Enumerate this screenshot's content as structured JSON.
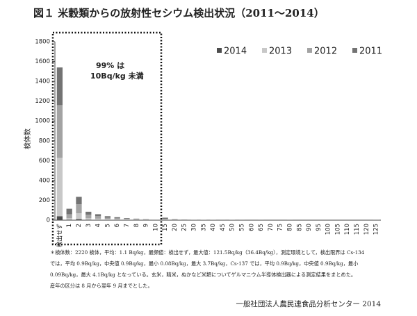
{
  "chart_data": {
    "type": "stacked_bar",
    "title": "図１ 米穀類からの放射性セシウム検出状況（2011〜2014）",
    "ylabel": "検体数",
    "annotation": [
      "99% は",
      "10Bq/kg 未満"
    ],
    "notes": [
      "＊検体数：2220 検体，平均：1.1 Bq/kg，最頻値：検出せず，最大値：121.5Bq/kg（36.4Bq/kg），測定環境として，検出限界は Cs-134",
      "では，平均 0.9Bq/kg，中央値 0.9Bq/kg，最小 0.08Bq/kg，最大 3.7Bq/kg，Cs-137 では，平均 0.9Bq/kg，中央値 0.9Bq/kg，最小",
      "0.09Bq/kg，最大 4.1Bq/kg となっている。玄米，精米，ぬかなど米類についてゲルマニウム半導体検出器による測定結果をまとめた。",
      "産年の区分は 8 月から翌年 9 月までとした。"
    ],
    "credit": "一般社団法人農民連食品分析センター 2014",
    "categories": [
      "検出せず",
      "1",
      "2",
      "3",
      "4",
      "5",
      "6",
      "7",
      "8",
      "9",
      "10",
      "15",
      "20",
      "25",
      "30",
      "35",
      "40",
      "45",
      "50",
      "55",
      "60",
      "65",
      "70",
      "75",
      "80",
      "85",
      "90",
      "95",
      "100",
      "105",
      "110",
      "115",
      "120",
      "125"
    ],
    "series": [
      {
        "name": "2014",
        "color": "#4d4d4d",
        "values": [
          40,
          5,
          10,
          3,
          2,
          1,
          1,
          0,
          0,
          0,
          0,
          0,
          0,
          0,
          0,
          0,
          0,
          0,
          0,
          0,
          0,
          0,
          0,
          0,
          0,
          0,
          0,
          0,
          0,
          0,
          0,
          0,
          0,
          0
        ]
      },
      {
        "name": "2013",
        "color": "#c8c8c8",
        "values": [
          590,
          15,
          60,
          17,
          13,
          9,
          6,
          4,
          3,
          2,
          1,
          3,
          1,
          1,
          0,
          0,
          0,
          0,
          0,
          0,
          0,
          0,
          0,
          0,
          0,
          0,
          0,
          0,
          0,
          0,
          0,
          0,
          0,
          0
        ]
      },
      {
        "name": "2012",
        "color": "#a3a3a3",
        "values": [
          530,
          40,
          90,
          35,
          25,
          15,
          12,
          8,
          6,
          4,
          2,
          10,
          4,
          2,
          2,
          1,
          1,
          0,
          1,
          0,
          0,
          0,
          0,
          0,
          0,
          0,
          0,
          0,
          0,
          0,
          0,
          0,
          0,
          0
        ]
      },
      {
        "name": "2011",
        "color": "#737373",
        "values": [
          380,
          55,
          75,
          30,
          20,
          15,
          11,
          8,
          6,
          4,
          2,
          12,
          5,
          3,
          2,
          2,
          1,
          1,
          1,
          1,
          0,
          1,
          0,
          0,
          1,
          0,
          0,
          0,
          0,
          0,
          0,
          0,
          0,
          1
        ]
      }
    ],
    "ylim": [
      0,
      1800
    ],
    "yticks": [
      0,
      200,
      400,
      600,
      800,
      1000,
      1200,
      1400,
      1600,
      1800
    ],
    "grid": false,
    "legend": "top-right"
  }
}
